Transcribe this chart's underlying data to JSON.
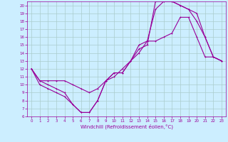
{
  "xlabel": "Windchill (Refroidissement éolien,°C)",
  "xlim": [
    -0.5,
    23.5
  ],
  "ylim": [
    6,
    20.5
  ],
  "yticks": [
    6,
    7,
    8,
    9,
    10,
    11,
    12,
    13,
    14,
    15,
    16,
    17,
    18,
    19,
    20
  ],
  "xticks": [
    0,
    1,
    2,
    3,
    4,
    5,
    6,
    7,
    8,
    9,
    10,
    11,
    12,
    13,
    14,
    15,
    16,
    17,
    18,
    19,
    20,
    21,
    22,
    23
  ],
  "background_color": "#cceeff",
  "grid_color": "#aacccc",
  "line_color": "#990099",
  "line1_x": [
    0,
    1,
    2,
    3,
    4,
    5,
    6,
    7,
    8,
    9,
    10,
    11,
    12,
    13,
    14,
    15,
    16,
    17,
    18,
    19,
    20,
    21,
    22,
    23
  ],
  "line1_y": [
    12,
    10.5,
    10.0,
    9.5,
    9.0,
    7.5,
    6.5,
    6.5,
    8.0,
    10.5,
    11.5,
    11.5,
    13.0,
    15.0,
    15.5,
    15.5,
    16.0,
    16.5,
    18.5,
    18.5,
    16.0,
    13.5,
    13.5,
    13.0
  ],
  "line2_x": [
    0,
    1,
    2,
    3,
    4,
    5,
    6,
    7,
    8,
    9,
    10,
    11,
    12,
    13,
    14,
    15,
    16,
    17,
    18,
    19,
    20,
    21,
    22,
    23
  ],
  "line2_y": [
    12,
    10.5,
    10.5,
    10.5,
    10.5,
    10.0,
    9.5,
    9.0,
    9.5,
    10.5,
    11.0,
    12.0,
    13.0,
    14.5,
    15.0,
    20.5,
    20.5,
    20.5,
    20.0,
    19.5,
    18.0,
    16.0,
    13.5,
    13.0
  ],
  "line3_x": [
    0,
    1,
    2,
    3,
    4,
    5,
    6,
    7,
    8,
    9,
    10,
    11,
    12,
    13,
    14,
    15,
    16,
    17,
    18,
    19,
    20,
    21,
    22,
    23
  ],
  "line3_y": [
    12,
    10.0,
    9.5,
    9.0,
    8.5,
    7.5,
    6.5,
    6.5,
    8.0,
    10.5,
    11.5,
    11.5,
    13.0,
    14.0,
    15.5,
    19.5,
    20.5,
    20.5,
    20.0,
    19.5,
    19.0,
    16.0,
    13.5,
    13.0
  ]
}
